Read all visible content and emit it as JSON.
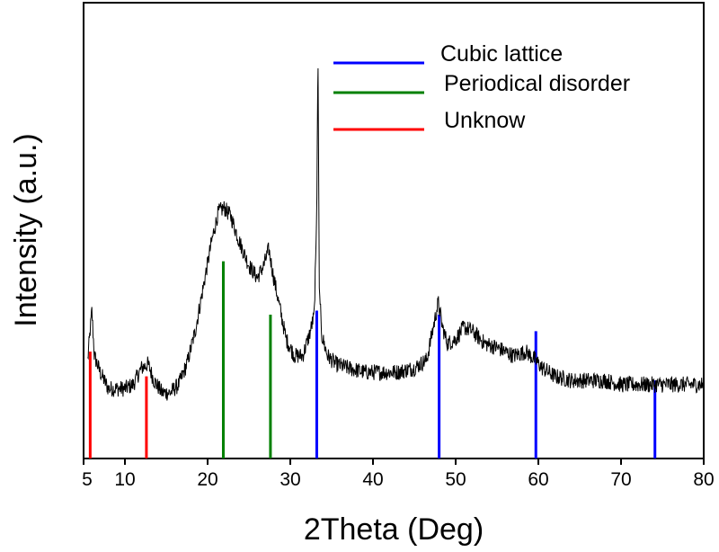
{
  "chart_data": {
    "type": "line",
    "xlabel": "2Theta (Deg)",
    "ylabel": "Intensity (a.u.)",
    "xlim": [
      5,
      80
    ],
    "ylim": [
      0,
      100
    ],
    "xticks": [
      5,
      10,
      20,
      30,
      40,
      50,
      60,
      70,
      80
    ],
    "grid": false,
    "legend_position": "top-right",
    "series": [
      {
        "type": "line",
        "color": "#000000",
        "x": [
          5.5,
          6.0,
          6.3,
          7.0,
          8.0,
          9.0,
          10.0,
          11.0,
          12.0,
          12.8,
          13.5,
          14.5,
          15.5,
          16.5,
          17.5,
          18.5,
          19.5,
          20.5,
          21.3,
          22.0,
          22.8,
          23.8,
          25.0,
          26.0,
          26.8,
          27.4,
          27.9,
          28.5,
          29.5,
          30.5,
          31.5,
          32.3,
          32.9,
          33.2,
          33.35,
          33.5,
          33.8,
          34.5,
          35.5,
          37.0,
          39.0,
          41.0,
          43.0,
          45.0,
          46.5,
          47.5,
          47.9,
          48.4,
          49.0,
          50.0,
          51.0,
          52.0,
          53.5,
          55.0,
          57.0,
          58.5,
          59.6,
          60.5,
          62.0,
          64.0,
          66.0,
          68.0,
          70.0,
          72.0,
          74.0,
          76.0,
          78.0,
          80.0
        ],
        "y": [
          24,
          36,
          25,
          21,
          17,
          17,
          17,
          18,
          22,
          23,
          19,
          16,
          16,
          18,
          23,
          31,
          42,
          53,
          60,
          61,
          59,
          53,
          47,
          44,
          47,
          51,
          45,
          39,
          29,
          25,
          25,
          30,
          35,
          60,
          100,
          42,
          30,
          25,
          23,
          22,
          21,
          21,
          21,
          22,
          24,
          34,
          38,
          32,
          28,
          29,
          32,
          31,
          28,
          27,
          25,
          26,
          24,
          22,
          20,
          19,
          19,
          19,
          18,
          18,
          18,
          18,
          18,
          18
        ]
      }
    ],
    "legend": [
      {
        "name": "Cubic lattice",
        "color": "#0000ff"
      },
      {
        "name": "Periodical disorder",
        "color": "#008000"
      },
      {
        "name": "Unknow",
        "color": "#ff0000"
      }
    ],
    "reference_lines": [
      {
        "x": 5.8,
        "height": 26,
        "color": "#ff0000"
      },
      {
        "x": 12.6,
        "height": 20,
        "color": "#ff0000"
      },
      {
        "x": 21.9,
        "height": 48,
        "color": "#008000"
      },
      {
        "x": 27.6,
        "height": 35,
        "color": "#008000"
      },
      {
        "x": 33.2,
        "height": 36,
        "color": "#0000ff"
      },
      {
        "x": 48.0,
        "height": 35,
        "color": "#0000ff"
      },
      {
        "x": 59.7,
        "height": 31,
        "color": "#0000ff"
      },
      {
        "x": 74.1,
        "height": 19,
        "color": "#0000ff"
      }
    ]
  }
}
